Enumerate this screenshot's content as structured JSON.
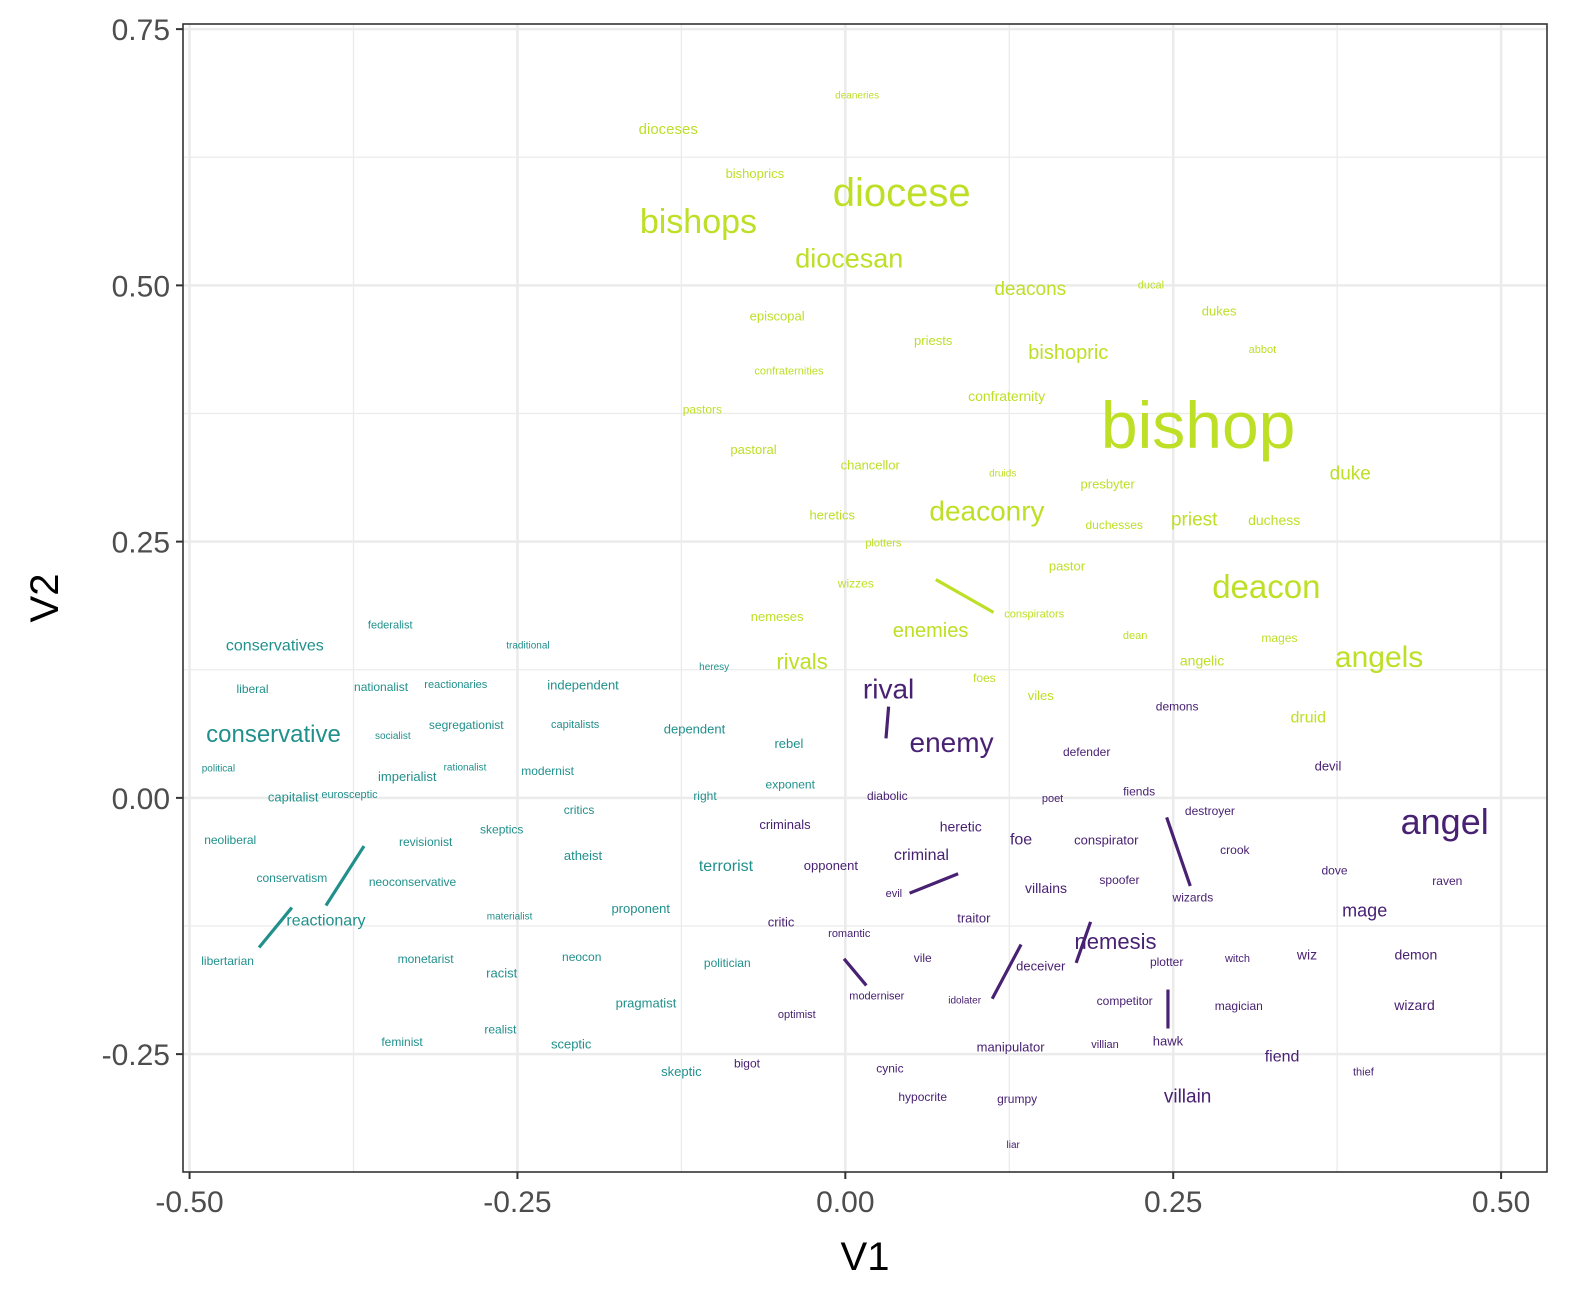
{
  "chart_data": {
    "type": "scatter",
    "xlabel": "V1",
    "ylabel": "V2",
    "xlim": [
      -0.505,
      0.535
    ],
    "ylim": [
      -0.365,
      0.755
    ],
    "x_ticks": [
      "-0.50",
      "-0.25",
      "0.00",
      "0.25",
      "0.50"
    ],
    "y_ticks": [
      "-0.25",
      "0.00",
      "0.25",
      "0.50",
      "0.75"
    ],
    "grid": true,
    "legend": "none",
    "colors": {
      "lime": "#bddf26",
      "teal": "#21908c",
      "purple": "#482173",
      "grid": "#ebebeb",
      "tick": "#4d4d4d"
    },
    "points": [
      {
        "label": "deaneries",
        "x": 0.009,
        "y": 0.685,
        "group": "lime",
        "size": 10
      },
      {
        "label": "dioceses",
        "x": -0.135,
        "y": 0.652,
        "group": "lime",
        "size": 15
      },
      {
        "label": "bishoprics",
        "x": -0.069,
        "y": 0.609,
        "group": "lime",
        "size": 13
      },
      {
        "label": "diocese",
        "x": 0.043,
        "y": 0.59,
        "group": "lime",
        "size": 40
      },
      {
        "label": "bishops",
        "x": -0.112,
        "y": 0.562,
        "group": "lime",
        "size": 34
      },
      {
        "label": "diocesan",
        "x": 0.003,
        "y": 0.526,
        "group": "lime",
        "size": 27
      },
      {
        "label": "deacons",
        "x": 0.141,
        "y": 0.496,
        "group": "lime",
        "size": 19
      },
      {
        "label": "ducal",
        "x": 0.233,
        "y": 0.5,
        "group": "lime",
        "size": 11
      },
      {
        "label": "dukes",
        "x": 0.285,
        "y": 0.475,
        "group": "lime",
        "size": 13
      },
      {
        "label": "episcopal",
        "x": -0.052,
        "y": 0.47,
        "group": "lime",
        "size": 13
      },
      {
        "label": "priests",
        "x": 0.067,
        "y": 0.446,
        "group": "lime",
        "size": 13
      },
      {
        "label": "abbot",
        "x": 0.318,
        "y": 0.437,
        "group": "lime",
        "size": 11
      },
      {
        "label": "bishopric",
        "x": 0.17,
        "y": 0.434,
        "group": "lime",
        "size": 20
      },
      {
        "label": "confraternities",
        "x": -0.043,
        "y": 0.416,
        "group": "lime",
        "size": 11
      },
      {
        "label": "confraternity",
        "x": 0.123,
        "y": 0.392,
        "group": "lime",
        "size": 14
      },
      {
        "label": "bishop",
        "x": 0.269,
        "y": 0.364,
        "group": "lime",
        "size": 66
      },
      {
        "label": "pastors",
        "x": -0.109,
        "y": 0.379,
        "group": "lime",
        "size": 12
      },
      {
        "label": "pastoral",
        "x": -0.07,
        "y": 0.34,
        "group": "lime",
        "size": 13
      },
      {
        "label": "chancellor",
        "x": 0.019,
        "y": 0.325,
        "group": "lime",
        "size": 13
      },
      {
        "label": "druids",
        "x": 0.12,
        "y": 0.316,
        "group": "lime",
        "size": 10
      },
      {
        "label": "duke",
        "x": 0.385,
        "y": 0.316,
        "group": "lime",
        "size": 19
      },
      {
        "label": "presbyter",
        "x": 0.2,
        "y": 0.306,
        "group": "lime",
        "size": 13
      },
      {
        "label": "heretics",
        "x": -0.01,
        "y": 0.276,
        "group": "lime",
        "size": 13
      },
      {
        "label": "deaconry",
        "x": 0.108,
        "y": 0.28,
        "group": "lime",
        "size": 28
      },
      {
        "label": "duchesses",
        "x": 0.205,
        "y": 0.266,
        "group": "lime",
        "size": 12
      },
      {
        "label": "priest",
        "x": 0.266,
        "y": 0.271,
        "group": "lime",
        "size": 19
      },
      {
        "label": "duchess",
        "x": 0.327,
        "y": 0.271,
        "group": "lime",
        "size": 14
      },
      {
        "label": "plotters",
        "x": 0.029,
        "y": 0.248,
        "group": "lime",
        "size": 11
      },
      {
        "label": "pastor",
        "x": 0.169,
        "y": 0.226,
        "group": "lime",
        "size": 13
      },
      {
        "label": "deacon",
        "x": 0.321,
        "y": 0.206,
        "group": "lime",
        "size": 33
      },
      {
        "label": "wizzes",
        "x": 0.008,
        "y": 0.209,
        "group": "lime",
        "size": 12
      },
      {
        "label": "conspirators",
        "x": 0.144,
        "y": 0.179,
        "group": "lime",
        "size": 11
      },
      {
        "label": "nemeses",
        "x": -0.052,
        "y": 0.177,
        "group": "lime",
        "size": 13
      },
      {
        "label": "enemies",
        "x": 0.065,
        "y": 0.163,
        "group": "lime",
        "size": 20
      },
      {
        "label": "dean",
        "x": 0.221,
        "y": 0.158,
        "group": "lime",
        "size": 11
      },
      {
        "label": "mages",
        "x": 0.331,
        "y": 0.156,
        "group": "lime",
        "size": 12
      },
      {
        "label": "rivals",
        "x": -0.033,
        "y": 0.133,
        "group": "lime",
        "size": 22
      },
      {
        "label": "angelic",
        "x": 0.272,
        "y": 0.134,
        "group": "lime",
        "size": 14
      },
      {
        "label": "angels",
        "x": 0.407,
        "y": 0.137,
        "group": "lime",
        "size": 30
      },
      {
        "label": "foes",
        "x": 0.106,
        "y": 0.117,
        "group": "lime",
        "size": 12
      },
      {
        "label": "viles",
        "x": 0.149,
        "y": 0.1,
        "group": "lime",
        "size": 13
      },
      {
        "label": "druid",
        "x": 0.353,
        "y": 0.078,
        "group": "lime",
        "size": 16
      },
      {
        "label": "federalist",
        "x": -0.347,
        "y": 0.168,
        "group": "teal",
        "size": 11
      },
      {
        "label": "conservatives",
        "x": -0.435,
        "y": 0.148,
        "group": "teal",
        "size": 16
      },
      {
        "label": "traditional",
        "x": -0.242,
        "y": 0.148,
        "group": "teal",
        "size": 10
      },
      {
        "label": "heresy",
        "x": -0.1,
        "y": 0.127,
        "group": "teal",
        "size": 10
      },
      {
        "label": "liberal",
        "x": -0.452,
        "y": 0.106,
        "group": "teal",
        "size": 12
      },
      {
        "label": "nationalist",
        "x": -0.354,
        "y": 0.108,
        "group": "teal",
        "size": 12
      },
      {
        "label": "reactionaries",
        "x": -0.297,
        "y": 0.11,
        "group": "teal",
        "size": 11
      },
      {
        "label": "independent",
        "x": -0.2,
        "y": 0.11,
        "group": "teal",
        "size": 13
      },
      {
        "label": "segregationist",
        "x": -0.289,
        "y": 0.071,
        "group": "teal",
        "size": 12
      },
      {
        "label": "capitalists",
        "x": -0.206,
        "y": 0.071,
        "group": "teal",
        "size": 11
      },
      {
        "label": "dependent",
        "x": -0.115,
        "y": 0.067,
        "group": "teal",
        "size": 13
      },
      {
        "label": "conservative",
        "x": -0.436,
        "y": 0.062,
        "group": "teal",
        "size": 24
      },
      {
        "label": "socialist",
        "x": -0.345,
        "y": 0.06,
        "group": "teal",
        "size": 10
      },
      {
        "label": "rebel",
        "x": -0.043,
        "y": 0.053,
        "group": "teal",
        "size": 13
      },
      {
        "label": "political",
        "x": -0.478,
        "y": 0.028,
        "group": "teal",
        "size": 10
      },
      {
        "label": "rationalist",
        "x": -0.29,
        "y": 0.029,
        "group": "teal",
        "size": 10
      },
      {
        "label": "modernist",
        "x": -0.227,
        "y": 0.026,
        "group": "teal",
        "size": 12
      },
      {
        "label": "imperialist",
        "x": -0.334,
        "y": 0.021,
        "group": "teal",
        "size": 13
      },
      {
        "label": "exponent",
        "x": -0.042,
        "y": 0.013,
        "group": "teal",
        "size": 12
      },
      {
        "label": "capitalist",
        "x": -0.421,
        "y": 0.001,
        "group": "teal",
        "size": 13
      },
      {
        "label": "eurosceptic",
        "x": -0.378,
        "y": 0.003,
        "group": "teal",
        "size": 11
      },
      {
        "label": "right",
        "x": -0.107,
        "y": 0.002,
        "group": "teal",
        "size": 12
      },
      {
        "label": "critics",
        "x": -0.203,
        "y": -0.012,
        "group": "teal",
        "size": 12
      },
      {
        "label": "skeptics",
        "x": -0.262,
        "y": -0.031,
        "group": "teal",
        "size": 12
      },
      {
        "label": "neoliberal",
        "x": -0.469,
        "y": -0.041,
        "group": "teal",
        "size": 12
      },
      {
        "label": "revisionist",
        "x": -0.32,
        "y": -0.043,
        "group": "teal",
        "size": 12
      },
      {
        "label": "atheist",
        "x": -0.2,
        "y": -0.056,
        "group": "teal",
        "size": 13
      },
      {
        "label": "terrorist",
        "x": -0.091,
        "y": -0.067,
        "group": "teal",
        "size": 16
      },
      {
        "label": "conservatism",
        "x": -0.422,
        "y": -0.078,
        "group": "teal",
        "size": 12
      },
      {
        "label": "neoconservative",
        "x": -0.33,
        "y": -0.082,
        "group": "teal",
        "size": 12
      },
      {
        "label": "proponent",
        "x": -0.156,
        "y": -0.108,
        "group": "teal",
        "size": 13
      },
      {
        "label": "materialist",
        "x": -0.256,
        "y": -0.116,
        "group": "teal",
        "size": 10
      },
      {
        "label": "reactionary",
        "x": -0.396,
        "y": -0.12,
        "group": "teal",
        "size": 16
      },
      {
        "label": "neocon",
        "x": -0.201,
        "y": -0.155,
        "group": "teal",
        "size": 12
      },
      {
        "label": "monetarist",
        "x": -0.32,
        "y": -0.157,
        "group": "teal",
        "size": 12
      },
      {
        "label": "libertarian",
        "x": -0.471,
        "y": -0.159,
        "group": "teal",
        "size": 12
      },
      {
        "label": "politician",
        "x": -0.09,
        "y": -0.161,
        "group": "teal",
        "size": 12
      },
      {
        "label": "racist",
        "x": -0.262,
        "y": -0.171,
        "group": "teal",
        "size": 13
      },
      {
        "label": "pragmatist",
        "x": -0.152,
        "y": -0.2,
        "group": "teal",
        "size": 13
      },
      {
        "label": "realist",
        "x": -0.263,
        "y": -0.226,
        "group": "teal",
        "size": 12
      },
      {
        "label": "feminist",
        "x": -0.338,
        "y": -0.238,
        "group": "teal",
        "size": 12
      },
      {
        "label": "sceptic",
        "x": -0.209,
        "y": -0.24,
        "group": "teal",
        "size": 13
      },
      {
        "label": "skeptic",
        "x": -0.125,
        "y": -0.267,
        "group": "teal",
        "size": 13
      },
      {
        "label": "rival",
        "x": 0.033,
        "y": 0.106,
        "group": "purple",
        "size": 28
      },
      {
        "label": "demons",
        "x": 0.253,
        "y": 0.089,
        "group": "purple",
        "size": 12
      },
      {
        "label": "enemy",
        "x": 0.081,
        "y": 0.054,
        "group": "purple",
        "size": 28
      },
      {
        "label": "defender",
        "x": 0.184,
        "y": 0.045,
        "group": "purple",
        "size": 12
      },
      {
        "label": "devil",
        "x": 0.368,
        "y": 0.031,
        "group": "purple",
        "size": 13
      },
      {
        "label": "diabolic",
        "x": 0.032,
        "y": 0.002,
        "group": "purple",
        "size": 12
      },
      {
        "label": "poet",
        "x": 0.158,
        "y": -0.001,
        "group": "purple",
        "size": 11
      },
      {
        "label": "fiends",
        "x": 0.224,
        "y": 0.006,
        "group": "purple",
        "size": 12
      },
      {
        "label": "destroyer",
        "x": 0.278,
        "y": -0.013,
        "group": "purple",
        "size": 12
      },
      {
        "label": "angel",
        "x": 0.457,
        "y": -0.023,
        "group": "purple",
        "size": 36
      },
      {
        "label": "criminals",
        "x": -0.046,
        "y": -0.026,
        "group": "purple",
        "size": 13
      },
      {
        "label": "heretic",
        "x": 0.088,
        "y": -0.028,
        "group": "purple",
        "size": 14
      },
      {
        "label": "foe",
        "x": 0.134,
        "y": -0.041,
        "group": "purple",
        "size": 16
      },
      {
        "label": "conspirator",
        "x": 0.199,
        "y": -0.041,
        "group": "purple",
        "size": 13
      },
      {
        "label": "crook",
        "x": 0.297,
        "y": -0.051,
        "group": "purple",
        "size": 12
      },
      {
        "label": "criminal",
        "x": 0.058,
        "y": -0.056,
        "group": "purple",
        "size": 16
      },
      {
        "label": "opponent",
        "x": -0.011,
        "y": -0.066,
        "group": "purple",
        "size": 13
      },
      {
        "label": "dove",
        "x": 0.373,
        "y": -0.071,
        "group": "purple",
        "size": 12
      },
      {
        "label": "spoofer",
        "x": 0.209,
        "y": -0.08,
        "group": "purple",
        "size": 12
      },
      {
        "label": "raven",
        "x": 0.459,
        "y": -0.081,
        "group": "purple",
        "size": 12
      },
      {
        "label": "villains",
        "x": 0.153,
        "y": -0.088,
        "group": "purple",
        "size": 14
      },
      {
        "label": "evil",
        "x": 0.037,
        "y": -0.094,
        "group": "purple",
        "size": 11
      },
      {
        "label": "wizards",
        "x": 0.265,
        "y": -0.097,
        "group": "purple",
        "size": 12
      },
      {
        "label": "mage",
        "x": 0.396,
        "y": -0.11,
        "group": "purple",
        "size": 18
      },
      {
        "label": "traitor",
        "x": 0.098,
        "y": -0.117,
        "group": "purple",
        "size": 13
      },
      {
        "label": "critic",
        "x": -0.049,
        "y": -0.121,
        "group": "purple",
        "size": 13
      },
      {
        "label": "romantic",
        "x": 0.003,
        "y": -0.133,
        "group": "purple",
        "size": 11
      },
      {
        "label": "nemesis",
        "x": 0.206,
        "y": -0.14,
        "group": "purple",
        "size": 22
      },
      {
        "label": "vile",
        "x": 0.059,
        "y": -0.156,
        "group": "purple",
        "size": 12
      },
      {
        "label": "wiz",
        "x": 0.352,
        "y": -0.153,
        "group": "purple",
        "size": 14
      },
      {
        "label": "demon",
        "x": 0.435,
        "y": -0.153,
        "group": "purple",
        "size": 14
      },
      {
        "label": "witch",
        "x": 0.299,
        "y": -0.157,
        "group": "purple",
        "size": 11
      },
      {
        "label": "plotter",
        "x": 0.245,
        "y": -0.16,
        "group": "purple",
        "size": 12
      },
      {
        "label": "deceiver",
        "x": 0.149,
        "y": -0.164,
        "group": "purple",
        "size": 13
      },
      {
        "label": "moderniser",
        "x": 0.024,
        "y": -0.194,
        "group": "purple",
        "size": 11
      },
      {
        "label": "idolater",
        "x": 0.091,
        "y": -0.198,
        "group": "purple",
        "size": 10
      },
      {
        "label": "competitor",
        "x": 0.213,
        "y": -0.198,
        "group": "purple",
        "size": 12
      },
      {
        "label": "magician",
        "x": 0.3,
        "y": -0.203,
        "group": "purple",
        "size": 12
      },
      {
        "label": "wizard",
        "x": 0.434,
        "y": -0.202,
        "group": "purple",
        "size": 14
      },
      {
        "label": "optimist",
        "x": -0.037,
        "y": -0.212,
        "group": "purple",
        "size": 11
      },
      {
        "label": "hawk",
        "x": 0.246,
        "y": -0.237,
        "group": "purple",
        "size": 13
      },
      {
        "label": "manipulator",
        "x": 0.126,
        "y": -0.243,
        "group": "purple",
        "size": 13
      },
      {
        "label": "villian",
        "x": 0.198,
        "y": -0.241,
        "group": "purple",
        "size": 11
      },
      {
        "label": "fiend",
        "x": 0.333,
        "y": -0.253,
        "group": "purple",
        "size": 16
      },
      {
        "label": "bigot",
        "x": -0.075,
        "y": -0.259,
        "group": "purple",
        "size": 12
      },
      {
        "label": "cynic",
        "x": 0.034,
        "y": -0.264,
        "group": "purple",
        "size": 12
      },
      {
        "label": "thief",
        "x": 0.395,
        "y": -0.268,
        "group": "purple",
        "size": 11
      },
      {
        "label": "villain",
        "x": 0.261,
        "y": -0.292,
        "group": "purple",
        "size": 19
      },
      {
        "label": "hypocrite",
        "x": 0.059,
        "y": -0.292,
        "group": "purple",
        "size": 12
      },
      {
        "label": "grumpy",
        "x": 0.131,
        "y": -0.294,
        "group": "purple",
        "size": 12
      },
      {
        "label": "liar",
        "x": 0.128,
        "y": -0.339,
        "group": "purple",
        "size": 10
      }
    ],
    "segments": [
      {
        "x1": 0.069,
        "y1": 0.213,
        "x2": 0.113,
        "y2": 0.181,
        "group": "lime"
      },
      {
        "x1": 0.033,
        "y1": 0.089,
        "x2": 0.031,
        "y2": 0.058,
        "group": "purple"
      },
      {
        "x1": -0.422,
        "y1": -0.107,
        "x2": -0.447,
        "y2": -0.146,
        "group": "teal"
      },
      {
        "x1": -0.367,
        "y1": -0.047,
        "x2": -0.396,
        "y2": -0.105,
        "group": "teal"
      },
      {
        "x1": 0.086,
        "y1": -0.074,
        "x2": 0.049,
        "y2": -0.093,
        "group": "purple"
      },
      {
        "x1": 0.245,
        "y1": -0.019,
        "x2": 0.263,
        "y2": -0.086,
        "group": "purple"
      },
      {
        "x1": 0.187,
        "y1": -0.121,
        "x2": 0.176,
        "y2": -0.161,
        "group": "purple"
      },
      {
        "x1": 0.134,
        "y1": -0.143,
        "x2": 0.112,
        "y2": -0.196,
        "group": "purple"
      },
      {
        "x1": -0.001,
        "y1": -0.157,
        "x2": 0.016,
        "y2": -0.183,
        "group": "purple"
      },
      {
        "x1": 0.246,
        "y1": -0.187,
        "x2": 0.246,
        "y2": -0.225,
        "group": "purple"
      }
    ]
  }
}
